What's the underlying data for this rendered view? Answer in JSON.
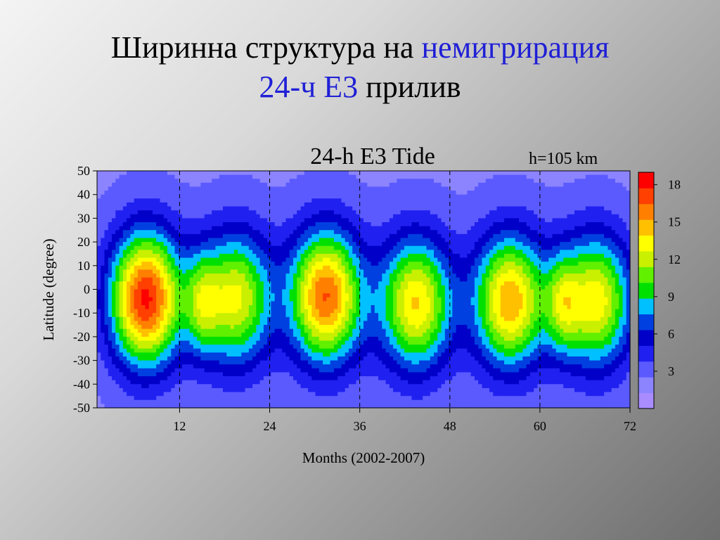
{
  "slide": {
    "title_part1": "Ширинна структура на",
    "title_highlight1": "немигрирация",
    "title_highlight2": "24-ч E3",
    "title_part2": "прилив"
  },
  "colors": {
    "highlight_text": "#1f1fd6",
    "colormap": [
      "#a98cff",
      "#8c84ff",
      "#5a5aff",
      "#2020f0",
      "#0000c8",
      "#0040e0",
      "#00c0ff",
      "#00e000",
      "#60f000",
      "#c8f000",
      "#ffff00",
      "#ffc000",
      "#ff8000",
      "#ff4000",
      "#ff0000"
    ]
  },
  "chart_data": {
    "type": "heatmap",
    "title": "24-h E3 Tide",
    "annotation": "h=105 km",
    "xlabel": "Months  (2002-2007)",
    "ylabel": "Latitude  (degree)",
    "xlim": [
      1,
      72
    ],
    "ylim": [
      -50,
      50
    ],
    "x_ticks": [
      12,
      24,
      36,
      48,
      60,
      72
    ],
    "y_ticks": [
      50,
      40,
      30,
      20,
      10,
      0,
      -10,
      -20,
      -30,
      -40,
      -50
    ],
    "year_boundaries": [
      12,
      24,
      36,
      48,
      60
    ],
    "colorbar": {
      "min": 0,
      "max": 19,
      "ticks": [
        3,
        6,
        9,
        12,
        15,
        18
      ]
    },
    "peaks": [
      {
        "month": 7.5,
        "lat": -4,
        "amplitude": 18
      },
      {
        "month": 15,
        "lat": -6,
        "amplitude": 7.5
      },
      {
        "month": 19.5,
        "lat": -4,
        "amplitude": 13
      },
      {
        "month": 31.5,
        "lat": -3,
        "amplitude": 16.5
      },
      {
        "month": 43.5,
        "lat": -6,
        "amplitude": 14
      },
      {
        "month": 56,
        "lat": -5,
        "amplitude": 15
      },
      {
        "month": 63,
        "lat": -6,
        "amplitude": 7.5
      },
      {
        "month": 67.5,
        "lat": -5,
        "amplitude": 13.5
      }
    ]
  }
}
